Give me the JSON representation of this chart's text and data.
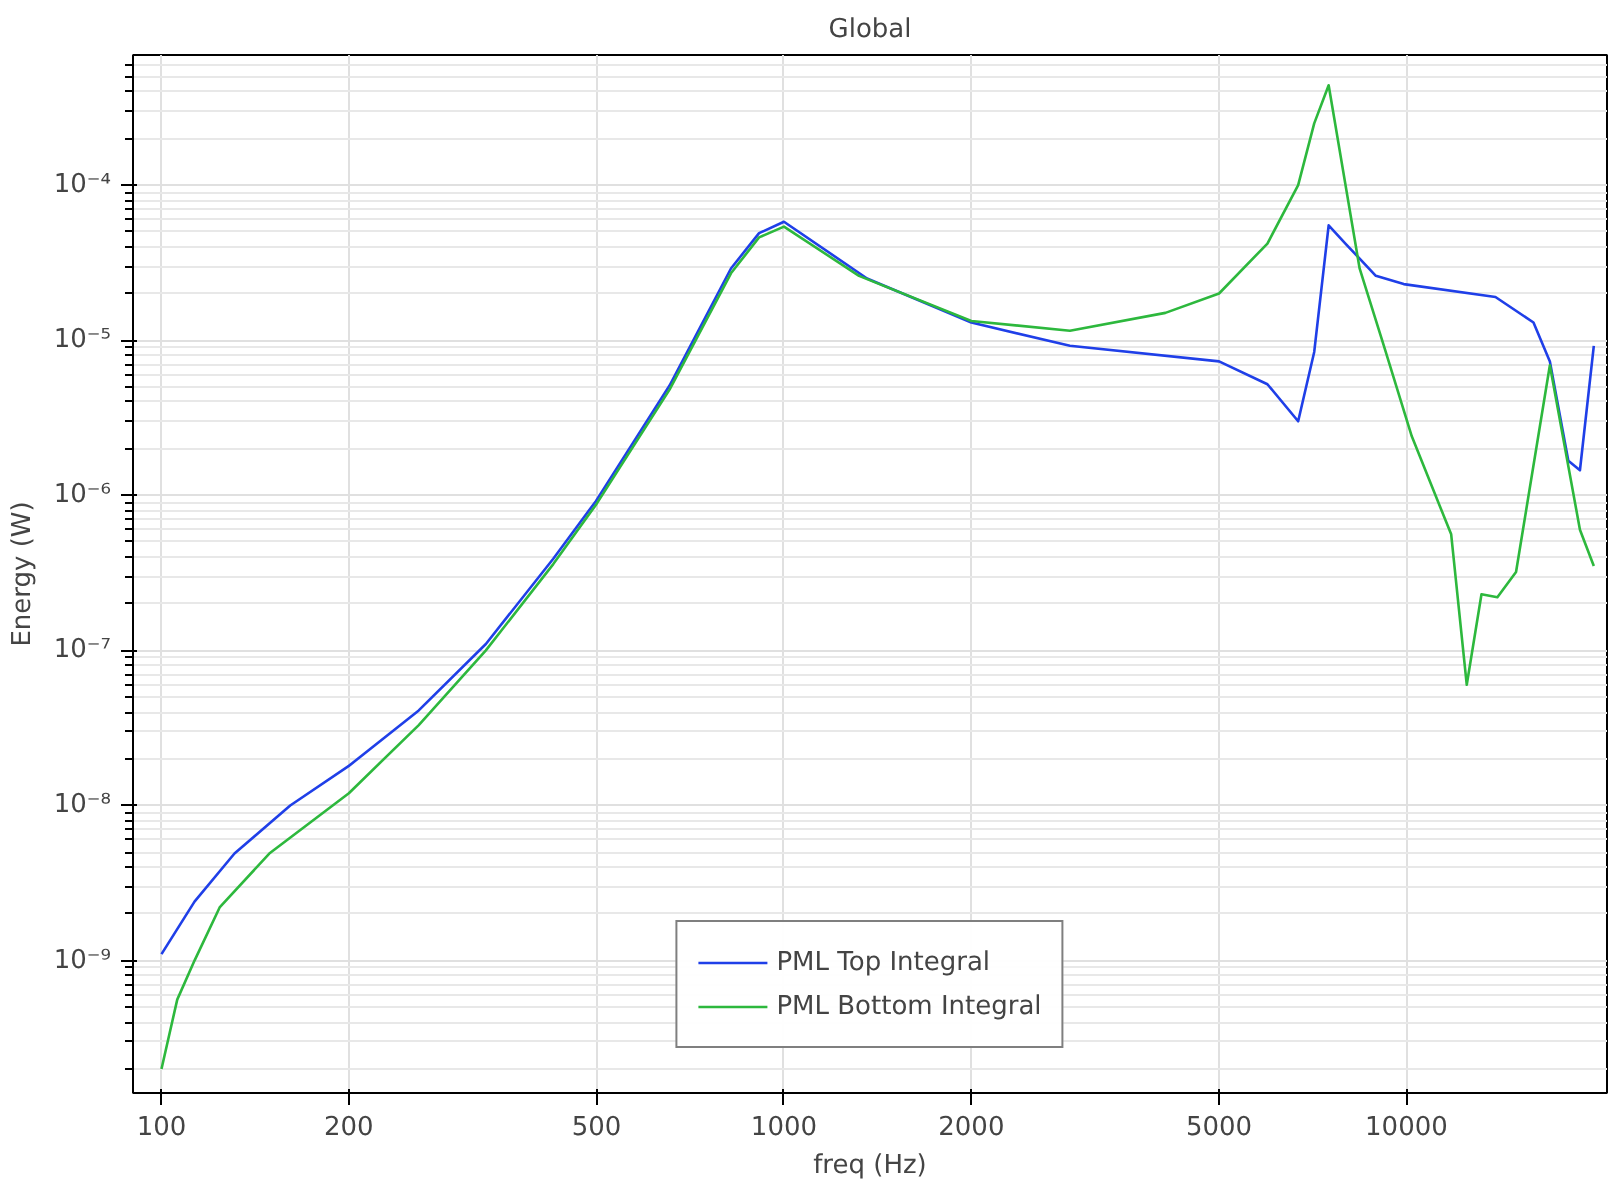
{
  "chart_data": {
    "type": "line",
    "title": "Global",
    "xlabel": "freq (Hz)",
    "ylabel": "Energy (W)",
    "log": "xy",
    "grid": true,
    "legend": "bottom",
    "line_style": "solid",
    "marker": "none",
    "xlim": [
      90,
      21000
    ],
    "ylim": [
      1.4e-10,
      0.00069
    ],
    "xticks": [
      100,
      200,
      500,
      1000,
      2000,
      5000,
      10000
    ],
    "yticks": [
      {
        "value": 1e-09,
        "label": "10⁻⁹"
      },
      {
        "value": 1e-08,
        "label": "10⁻⁸"
      },
      {
        "value": 1e-07,
        "label": "10⁻⁷"
      },
      {
        "value": 1e-06,
        "label": "10⁻⁶"
      },
      {
        "value": 1e-05,
        "label": "10⁻⁵"
      },
      {
        "value": 0.0001,
        "label": "10⁻⁴"
      }
    ],
    "series": [
      {
        "name": "PML Top Integral",
        "color": "#1f3fe8",
        "x": [
          100,
          113,
          131,
          161,
          200,
          259,
          332,
          426,
          499,
          655,
          822,
          912,
          1000,
          1360,
          2000,
          2880,
          5000,
          5980,
          6700,
          7110,
          7500,
          7980,
          8930,
          9900,
          13900,
          16000,
          17000,
          18200,
          19000,
          20000
        ],
        "values": [
          1.1e-09,
          2.4e-09,
          4.9e-09,
          1e-08,
          1.8e-08,
          4.1e-08,
          1.1e-07,
          3.9e-07,
          9.2e-07,
          5.1e-06,
          2.9e-05,
          4.9e-05,
          5.8e-05,
          2.5e-05,
          1.3e-05,
          9.2e-06,
          7.3e-06,
          5.2e-06,
          3e-06,
          8.4e-06,
          5.5e-05,
          4.2e-05,
          2.6e-05,
          2.3e-05,
          1.9e-05,
          1.3e-05,
          7.3e-06,
          1.67e-06,
          1.45e-06,
          9.2e-06
        ]
      },
      {
        "name": "PML Bottom Integral",
        "color": "#2db83d",
        "x": [
          100,
          106,
          113,
          124,
          149,
          200,
          259,
          332,
          426,
          500,
          655,
          822,
          912,
          1000,
          1320,
          2000,
          2880,
          4100,
          5000,
          5980,
          6700,
          7110,
          7500,
          8410,
          9200,
          10200,
          11800,
          12500,
          13200,
          14000,
          15000,
          17000,
          19000,
          20000
        ],
        "values": [
          2e-10,
          5.6e-10,
          1e-09,
          2.2e-09,
          4.9e-09,
          1.2e-08,
          3.3e-08,
          1e-07,
          3.6e-07,
          8.8e-07,
          4.8e-06,
          2.7e-05,
          4.6e-05,
          5.4e-05,
          2.6e-05,
          1.33e-05,
          1.15e-05,
          1.5e-05,
          2e-05,
          4.2e-05,
          0.0001,
          0.00025,
          0.00044,
          2.9e-05,
          9.2e-06,
          2.4e-06,
          5.6e-07,
          6e-08,
          2.3e-07,
          2.2e-07,
          3.2e-07,
          6.9e-06,
          6e-07,
          3.5e-07
        ]
      }
    ]
  }
}
